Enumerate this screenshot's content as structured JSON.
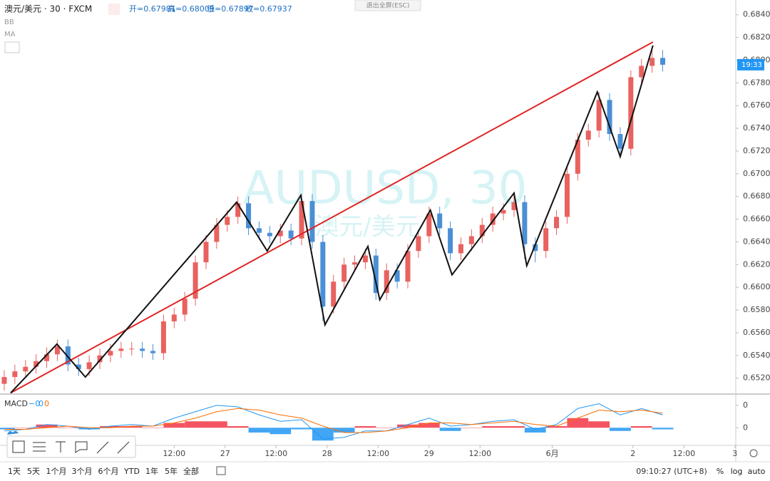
{
  "header": {
    "symbol": "澳元/美元 · 30 · FXCM",
    "open": "开=0.67981",
    "high": "高=0.68009",
    "low": "低=0.67897",
    "close": "收=0.67937",
    "indicators": [
      "BB",
      "MA"
    ],
    "exit_fullscreen": "退出全屏(ESC)"
  },
  "chart_data": [
    {
      "type": "candlestick",
      "watermark": "AUDUSD, 30",
      "watermark_sub": "澳元/美元",
      "up_color": "#e8625f",
      "down_color": "#4a8fd6",
      "x": [
        1,
        3.5,
        6,
        8.5,
        11,
        13.5,
        16,
        18.5,
        21,
        23.5,
        26,
        28.5,
        31,
        33.5,
        36,
        38.5,
        41,
        43.5,
        46,
        48.5,
        51,
        53.5,
        56,
        58.5,
        61,
        63.5,
        66,
        68.5,
        71,
        73.5,
        76,
        78.5,
        81,
        83.5,
        86,
        88.5,
        91,
        93.5,
        96,
        98.5,
        101,
        103.5,
        106,
        108.5,
        111,
        113.5,
        116,
        118.5,
        121,
        123.5,
        126,
        128.5,
        131,
        133.5,
        136,
        138.5,
        141,
        143.5,
        146,
        148.5,
        151,
        153.5,
        156
      ],
      "open": [
        0.6515,
        0.6521,
        0.6526,
        0.653,
        0.6535,
        0.6541,
        0.6548,
        0.6532,
        0.6528,
        0.6534,
        0.654,
        0.6544,
        0.6546,
        0.6546,
        0.6544,
        0.6542,
        0.657,
        0.6576,
        0.659,
        0.6622,
        0.664,
        0.6655,
        0.6662,
        0.6674,
        0.6652,
        0.6648,
        0.6645,
        0.665,
        0.6643,
        0.6676,
        0.664,
        0.6583,
        0.6605,
        0.662,
        0.6622,
        0.6628,
        0.6595,
        0.6615,
        0.6605,
        0.6632,
        0.6645,
        0.6665,
        0.6652,
        0.663,
        0.6638,
        0.6645,
        0.6655,
        0.6665,
        0.6668,
        0.6675,
        0.6638,
        0.6632,
        0.6652,
        0.6662,
        0.67,
        0.673,
        0.6738,
        0.6765,
        0.6735,
        0.6722,
        0.6785,
        0.6795,
        0.6802
      ],
      "high": [
        0.6527,
        0.6532,
        0.6536,
        0.6541,
        0.6547,
        0.6554,
        0.6554,
        0.6538,
        0.654,
        0.6546,
        0.655,
        0.6552,
        0.6552,
        0.6552,
        0.655,
        0.6576,
        0.6582,
        0.6596,
        0.6628,
        0.6646,
        0.6661,
        0.6668,
        0.668,
        0.668,
        0.6658,
        0.6654,
        0.6656,
        0.6656,
        0.6682,
        0.6682,
        0.6646,
        0.6611,
        0.6626,
        0.6628,
        0.6634,
        0.6634,
        0.6621,
        0.6621,
        0.6638,
        0.6651,
        0.6671,
        0.6671,
        0.6658,
        0.6644,
        0.6651,
        0.6661,
        0.6671,
        0.6674,
        0.6683,
        0.6681,
        0.6644,
        0.6658,
        0.6668,
        0.6706,
        0.6736,
        0.6744,
        0.6772,
        0.6771,
        0.6741,
        0.6791,
        0.6801,
        0.681,
        0.6809
      ],
      "low": [
        0.6509,
        0.6515,
        0.652,
        0.6524,
        0.6529,
        0.6535,
        0.6526,
        0.6522,
        0.6522,
        0.6528,
        0.6534,
        0.6538,
        0.654,
        0.6538,
        0.6536,
        0.6536,
        0.6564,
        0.657,
        0.6584,
        0.6616,
        0.6634,
        0.6649,
        0.6656,
        0.6646,
        0.6642,
        0.6639,
        0.6639,
        0.6637,
        0.6637,
        0.6634,
        0.657,
        0.6577,
        0.6599,
        0.6614,
        0.6616,
        0.6589,
        0.6589,
        0.6599,
        0.6599,
        0.6626,
        0.6639,
        0.6646,
        0.6624,
        0.6624,
        0.6632,
        0.6639,
        0.6649,
        0.6659,
        0.6662,
        0.6625,
        0.6622,
        0.6626,
        0.6646,
        0.6656,
        0.6694,
        0.6724,
        0.6732,
        0.6729,
        0.6716,
        0.6716,
        0.6779,
        0.6789,
        0.679
      ],
      "close": [
        0.6521,
        0.6526,
        0.653,
        0.6535,
        0.6541,
        0.6548,
        0.6532,
        0.6528,
        0.6534,
        0.654,
        0.6544,
        0.6546,
        0.6546,
        0.6544,
        0.6542,
        0.657,
        0.6576,
        0.659,
        0.6622,
        0.664,
        0.6655,
        0.6662,
        0.6674,
        0.6652,
        0.6648,
        0.6645,
        0.665,
        0.6643,
        0.6676,
        0.664,
        0.6583,
        0.6605,
        0.662,
        0.6622,
        0.6628,
        0.6595,
        0.6615,
        0.6605,
        0.6632,
        0.6645,
        0.6665,
        0.6652,
        0.663,
        0.6638,
        0.6645,
        0.6655,
        0.6665,
        0.6668,
        0.6675,
        0.6638,
        0.6632,
        0.6652,
        0.6662,
        0.67,
        0.673,
        0.6738,
        0.6765,
        0.6735,
        0.6722,
        0.6785,
        0.6795,
        0.6802,
        0.6796
      ],
      "zigzag": {
        "color": "#111111",
        "x": [
          2.5,
          13.4,
          20.1,
          55.7,
          62.9,
          70.8,
          76.5,
          86.6,
          89.4,
          101.3,
          106.4,
          121,
          124,
          140.6,
          146,
          153.7
        ],
        "y": [
          0.6507,
          0.655,
          0.6521,
          0.6675,
          0.6632,
          0.6681,
          0.6567,
          0.6636,
          0.6589,
          0.6668,
          0.6611,
          0.6683,
          0.6619,
          0.6772,
          0.6715,
          0.6813
        ]
      },
      "trendline": {
        "color": "#e02424",
        "x": [
          2.5,
          153.7
        ],
        "y": [
          0.6507,
          0.6816
        ]
      },
      "countdown": "19:33",
      "xlim": [
        0,
        173.2
      ],
      "xticks": [
        {
          "value": 41,
          "label": "12:00"
        },
        {
          "value": 53,
          "label": "27"
        },
        {
          "value": 65,
          "label": "12:00"
        },
        {
          "value": 77,
          "label": "28"
        },
        {
          "value": 89,
          "label": "12:00"
        },
        {
          "value": 101,
          "label": "29"
        },
        {
          "value": 113,
          "label": "12:00"
        },
        {
          "value": 130,
          "label": "6月"
        },
        {
          "value": 149,
          "label": "2"
        },
        {
          "value": 161,
          "label": "12:00"
        },
        {
          "value": 173,
          "label": "3"
        }
      ],
      "ylim": [
        0.6506,
        0.6853
      ],
      "yticks": [
        {
          "value": 0.652,
          "label": "0.65200"
        },
        {
          "value": 0.654,
          "label": "0.65400"
        },
        {
          "value": 0.656,
          "label": "0.65600"
        },
        {
          "value": 0.658,
          "label": "0.65800"
        },
        {
          "value": 0.66,
          "label": "0.66000"
        },
        {
          "value": 0.662,
          "label": "0.66200"
        },
        {
          "value": 0.664,
          "label": "0.66400"
        },
        {
          "value": 0.666,
          "label": "0.66600"
        },
        {
          "value": 0.668,
          "label": "0.66800"
        },
        {
          "value": 0.67,
          "label": "0.67000"
        },
        {
          "value": 0.672,
          "label": "0.67200"
        },
        {
          "value": 0.674,
          "label": "0.67400"
        },
        {
          "value": 0.676,
          "label": "0.67600"
        },
        {
          "value": 0.678,
          "label": "0.67800"
        },
        {
          "value": 0.68,
          "label": "0.68000"
        },
        {
          "value": 0.682,
          "label": "0.68200"
        },
        {
          "value": 0.684,
          "label": "0.68400"
        }
      ]
    },
    {
      "type": "macd",
      "title": "MACD",
      "values_text": [
        "−0",
        "0",
        "0"
      ],
      "x": [
        1,
        6,
        11,
        16,
        21,
        26,
        31,
        36,
        41,
        46,
        51,
        56,
        61,
        66,
        71,
        76,
        81,
        86,
        91,
        96,
        101,
        106,
        111,
        116,
        121,
        126,
        131,
        136,
        141,
        146,
        151,
        156
      ],
      "series": [
        {
          "name": "MACD",
          "color": "#2196f3",
          "values": [
            -0.0002,
            -0.0001,
            0.0002,
            0.0001,
            -0.0001,
            0.0001,
            0.0002,
            0.0001,
            0.0006,
            0.001,
            0.0014,
            0.0013,
            0.0008,
            0.0004,
            0.0005,
            -0.0007,
            -0.0006,
            -0.0002,
            -0.0002,
            0.0002,
            0.0006,
            0.0001,
            0.0002,
            0.0004,
            0.0005,
            -0.0001,
            0.0002,
            0.0012,
            0.0015,
            0.0008,
            0.0012,
            0.0008
          ]
        },
        {
          "name": "Signal",
          "color": "#ff6d00",
          "values": [
            -0.0001,
            -0.0001,
            0,
            0.0001,
            0,
            0,
            0.0001,
            0.0001,
            0.0003,
            0.0006,
            0.001,
            0.0012,
            0.0011,
            0.0008,
            0.0006,
            0.0001,
            -0.0003,
            -0.0003,
            -0.0002,
            0,
            0.0003,
            0.0003,
            0.0002,
            0.0003,
            0.0004,
            0.0002,
            0.0001,
            0.0006,
            0.0011,
            0.001,
            0.0011,
            0.0009
          ]
        }
      ],
      "histogram": {
        "up_color": "#f23645",
        "down_color": "#2196f3",
        "values": [
          -0.0001,
          0,
          0.0002,
          0,
          -0.0001,
          0.0001,
          0.0001,
          0,
          0.0003,
          0.0004,
          0.0004,
          0.0001,
          -0.0003,
          -0.0004,
          -0.0001,
          -0.0008,
          -0.0003,
          0.0001,
          0,
          0.0002,
          0.0003,
          -0.0002,
          0,
          0.0001,
          0.0001,
          -0.0003,
          0.0001,
          0.0006,
          0.0004,
          -0.0002,
          0.0001,
          -0.0001
        ]
      },
      "ylim": [
        -0.0011,
        0.0021
      ],
      "yticks": [
        {
          "value": 0.0014,
          "label": "0"
        },
        {
          "value": 0,
          "label": "0"
        }
      ]
    }
  ],
  "toolbar": {
    "ranges": [
      "1天",
      "5天",
      "1个月",
      "3个月",
      "6个月",
      "YTD",
      "1年",
      "5年",
      "全部"
    ],
    "clock": "09:10:27 (UTC+8)",
    "options": [
      "%",
      "log",
      "auto"
    ]
  }
}
